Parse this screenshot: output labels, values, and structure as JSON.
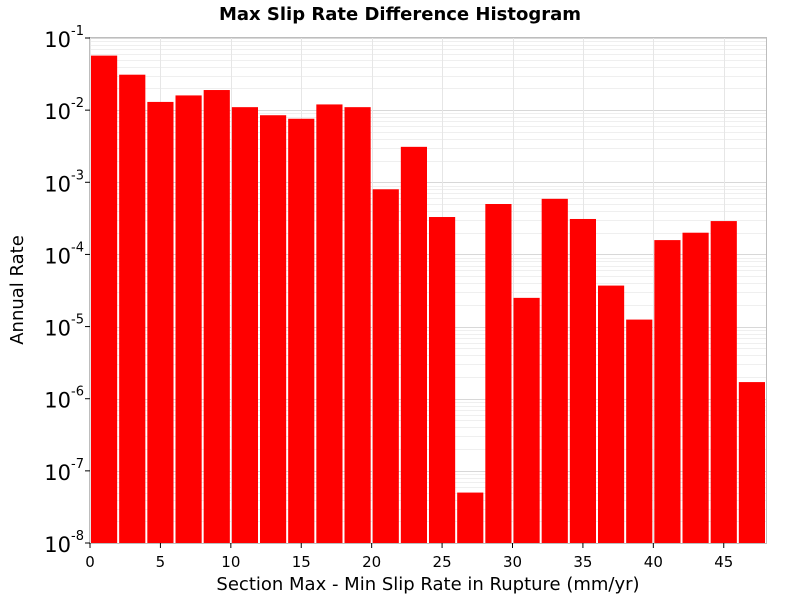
{
  "chart_data": {
    "type": "bar",
    "title": "Max Slip Rate Difference Histogram",
    "xlabel": "Section Max - Min Slip Rate in Rupture (mm/yr)",
    "ylabel": "Annual Rate",
    "x_scale": "linear",
    "y_scale": "log",
    "xlim": [
      0,
      48
    ],
    "ylim": [
      1e-08,
      0.1
    ],
    "bin_width": 2,
    "grid": true,
    "legend": "none",
    "bar_color": "#ff0000",
    "x_ticks": [
      0,
      5,
      10,
      15,
      20,
      25,
      30,
      35,
      40,
      45
    ],
    "y_tick_base": "10",
    "y_tick_exponents": [
      "-8",
      "-7",
      "-6",
      "-5",
      "-4",
      "-3",
      "-2",
      "-1"
    ],
    "x": [
      1,
      3,
      5,
      7,
      9,
      11,
      13,
      15,
      17,
      19,
      21,
      23,
      25,
      27,
      29,
      31,
      33,
      35,
      37,
      39,
      41,
      43,
      45,
      47
    ],
    "values": [
      0.057,
      0.031,
      0.013,
      0.016,
      0.019,
      0.011,
      0.0085,
      0.0076,
      0.012,
      0.011,
      0.0008,
      0.0031,
      0.00033,
      5e-08,
      0.0005,
      2.5e-05,
      0.00059,
      0.00031,
      3.7e-05,
      1.25e-05,
      0.000158,
      0.0002,
      0.00029,
      1.7e-06
    ]
  }
}
